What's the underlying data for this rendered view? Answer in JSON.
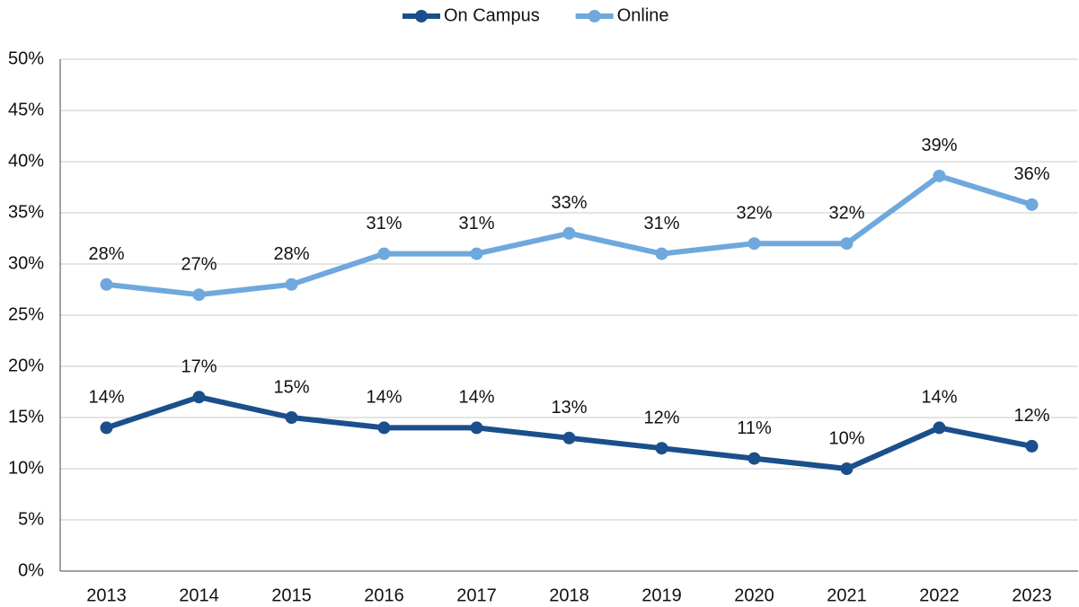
{
  "chart_data": {
    "type": "line",
    "categories": [
      "2013",
      "2014",
      "2015",
      "2016",
      "2017",
      "2018",
      "2019",
      "2020",
      "2021",
      "2022",
      "2023"
    ],
    "series": [
      {
        "name": "On Campus",
        "color": "#1a4f8b",
        "values": [
          14,
          17,
          15,
          14,
          14,
          13,
          12,
          11,
          10,
          14,
          12.2
        ],
        "value_labels": [
          "14%",
          "17%",
          "15%",
          "14%",
          "14%",
          "13%",
          "12%",
          "11%",
          "10%",
          "14%",
          "12%"
        ]
      },
      {
        "name": "Online",
        "color": "#6fa8dc",
        "values": [
          28,
          27,
          28,
          31,
          31,
          33,
          31,
          32,
          32,
          38.6,
          35.8
        ],
        "value_labels": [
          "28%",
          "27%",
          "28%",
          "31%",
          "31%",
          "33%",
          "31%",
          "32%",
          "32%",
          "39%",
          "36%"
        ]
      }
    ],
    "ylim": [
      0,
      50
    ],
    "yticks": [
      {
        "value": 0,
        "label": "0%"
      },
      {
        "value": 5,
        "label": "5%"
      },
      {
        "value": 10,
        "label": "10%"
      },
      {
        "value": 15,
        "label": "15%"
      },
      {
        "value": 20,
        "label": "20%"
      },
      {
        "value": 25,
        "label": "25%"
      },
      {
        "value": 30,
        "label": "30%"
      },
      {
        "value": 35,
        "label": "35%"
      },
      {
        "value": 40,
        "label": "40%"
      },
      {
        "value": 45,
        "label": "45%"
      },
      {
        "value": 50,
        "label": "50%"
      }
    ],
    "grid": true,
    "legend": "top"
  }
}
